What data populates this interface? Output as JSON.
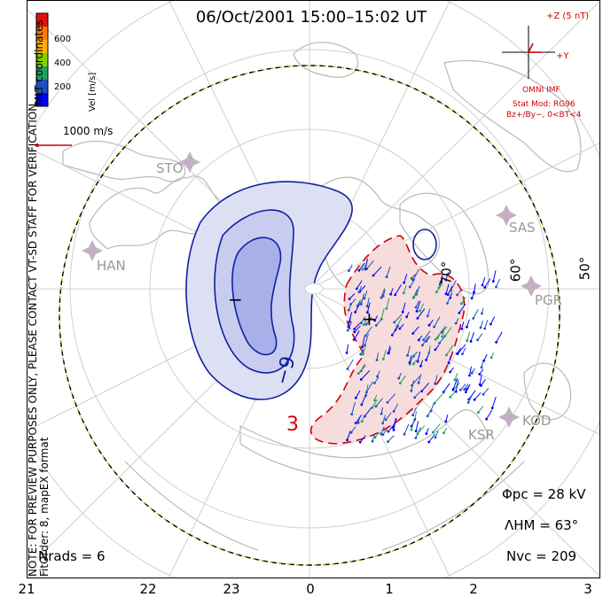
{
  "title": "06/Oct/2001  15:00–15:02 UT",
  "side_note": "NOTE: FOR PREVIEW PURPOSES ONLY, PLEASE CONTACT VT-SD STAFF FOR VERIFICATION.",
  "fit_order": "FitOrder: 8, mapEX format",
  "coords_label": "MLT coordinates",
  "colorbar": {
    "title": "Vel [m/s]",
    "ticks": [
      "600",
      "400",
      "200"
    ],
    "colors": [
      "#e01010",
      "#ff7a00",
      "#ffb000",
      "#7ed000",
      "#22a060",
      "#2050c0",
      "#0000ff"
    ]
  },
  "scale_vector": "1000 m/s",
  "imf": {
    "z_label": "+Z (5 nT)",
    "y_label": "+Y",
    "source": "OMNI IMF",
    "model": "Stat Mod: RG96",
    "condition": "Bz+/By−, 0<BT<4"
  },
  "stations": [
    "STO",
    "HAN",
    "SAS",
    "PGR",
    "KOD",
    "KSR"
  ],
  "latitude_labels": [
    "70°",
    "60°",
    "50°"
  ],
  "contour_labels": [
    "−9",
    "3"
  ],
  "markers": {
    "min": "−",
    "max": "+"
  },
  "stats": {
    "phi_pc": "Φpc = 28 kV",
    "lambda_hm": "ΛHM = 63°",
    "n_vc": "Nvc = 209",
    "n_rads": "Nrads = 6"
  },
  "mlt_axis": [
    "21",
    "22",
    "23",
    "0",
    "1",
    "2",
    "3"
  ],
  "colors": {
    "positive_cell": "#f5dcdc",
    "negative_cell": "#d8dcf5",
    "positive_line": "#d00000",
    "negative_line": "#1020a0",
    "hmb": "#7ed000"
  }
}
